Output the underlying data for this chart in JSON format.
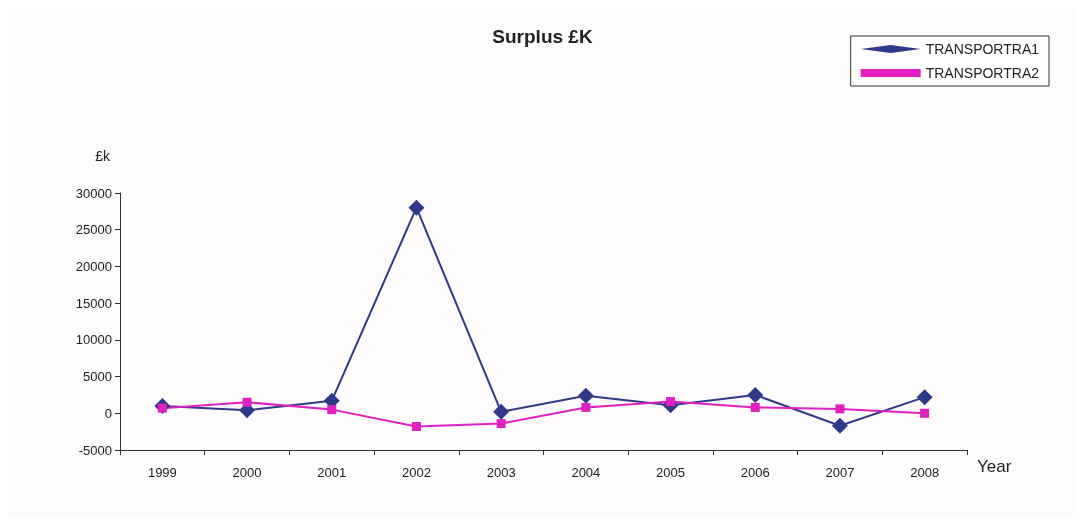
{
  "chart_data": {
    "type": "line",
    "title": "Surplus £K",
    "xlabel": "Year",
    "ylabel": "£k",
    "categories": [
      "1999",
      "2000",
      "2001",
      "2002",
      "2003",
      "2004",
      "2005",
      "2006",
      "2007",
      "2008"
    ],
    "series": [
      {
        "name": "TRANSPORTRA1",
        "color": "#2e3a87",
        "marker": "diamond",
        "values": [
          1000,
          400,
          1700,
          28000,
          200,
          2400,
          1100,
          2500,
          -1700,
          2200
        ]
      },
      {
        "name": "TRANSPORTRA2",
        "color": "#e020c0",
        "marker": "square",
        "values": [
          700,
          1500,
          500,
          -1800,
          -1400,
          800,
          1600,
          800,
          600,
          0
        ]
      }
    ],
    "ylim": [
      -5000,
      30000
    ],
    "yticks": [
      -5000,
      0,
      5000,
      10000,
      15000,
      20000,
      25000,
      30000
    ],
    "grid": false,
    "legend": "top right",
    "line_style": "solid"
  }
}
